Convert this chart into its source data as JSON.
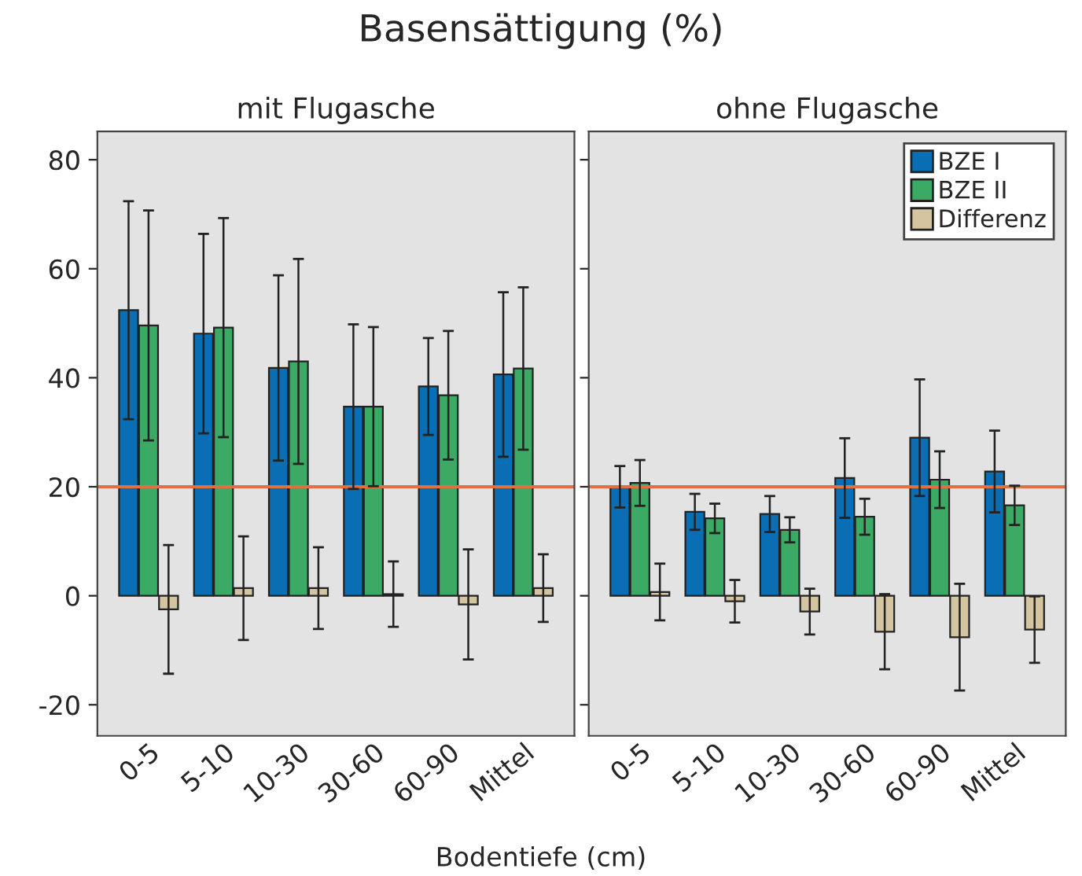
{
  "chart_data": [
    {
      "type": "bar",
      "title": "Basensättigung (%)",
      "subtitle": "mit Flugasche",
      "xlabel": "Bodentiefe (cm)",
      "categories": [
        "0-5",
        "5-10",
        "10-30",
        "30-60",
        "60-90",
        "Mittel"
      ],
      "series": [
        {
          "color": "#0a6eb4",
          "values": [
            52.4,
            48.1,
            41.8,
            34.7,
            38.4,
            40.6
          ],
          "errors": [
            20,
            18.3,
            17,
            15.1,
            8.9,
            15.1
          ]
        },
        {
          "color": "#3aaa64",
          "values": [
            49.6,
            49.2,
            43.0,
            34.7,
            36.8,
            41.7
          ],
          "errors": [
            21.1,
            20.1,
            18.8,
            14.6,
            11.8,
            14.9
          ]
        },
        {
          "color": "#d4c4a0",
          "values": [
            -2.5,
            1.4,
            1.4,
            0.3,
            -1.6,
            1.4
          ],
          "errors": [
            11.8,
            9.5,
            7.5,
            6,
            10.1,
            6.2
          ]
        }
      ],
      "ylim": [
        -25.7,
        85.2
      ],
      "yticks": [
        -20,
        0,
        20,
        40,
        60,
        80
      ],
      "ref_lines": [
        {
          "axis": "y",
          "value": 20,
          "color": "#e07040"
        }
      ],
      "grid": false,
      "legend": false
    },
    {
      "type": "bar",
      "subtitle": "ohne Flugasche",
      "categories": [
        "0-5",
        "5-10",
        "10-30",
        "30-60",
        "60-90",
        "Mittel"
      ],
      "series": [
        {
          "name": "BZE I",
          "color": "#0a6eb4",
          "values": [
            20.0,
            15.4,
            15.0,
            21.6,
            29.0,
            22.8
          ],
          "errors": [
            3.8,
            3.3,
            3.3,
            7.3,
            10.7,
            7.5
          ]
        },
        {
          "name": "BZE II",
          "color": "#3aaa64",
          "values": [
            20.7,
            14.2,
            12.1,
            14.5,
            21.3,
            16.6
          ],
          "errors": [
            4.2,
            2.7,
            2.3,
            3.3,
            5.2,
            3.6
          ]
        },
        {
          "name": "Differenz",
          "color": "#d4c4a0",
          "values": [
            0.7,
            -1.0,
            -2.9,
            -6.6,
            -7.6,
            -6.2
          ],
          "errors": [
            5.2,
            3.9,
            4.2,
            6.9,
            9.8,
            6.1
          ]
        }
      ],
      "ylim": [
        -25.7,
        85.2
      ],
      "yticks": [
        -20,
        0,
        20,
        40,
        60,
        80
      ],
      "tick_labels": "x",
      "ref_lines": [
        {
          "axis": "y",
          "value": 20,
          "color": "#e07040"
        }
      ],
      "grid": false,
      "legend": "top right"
    }
  ]
}
